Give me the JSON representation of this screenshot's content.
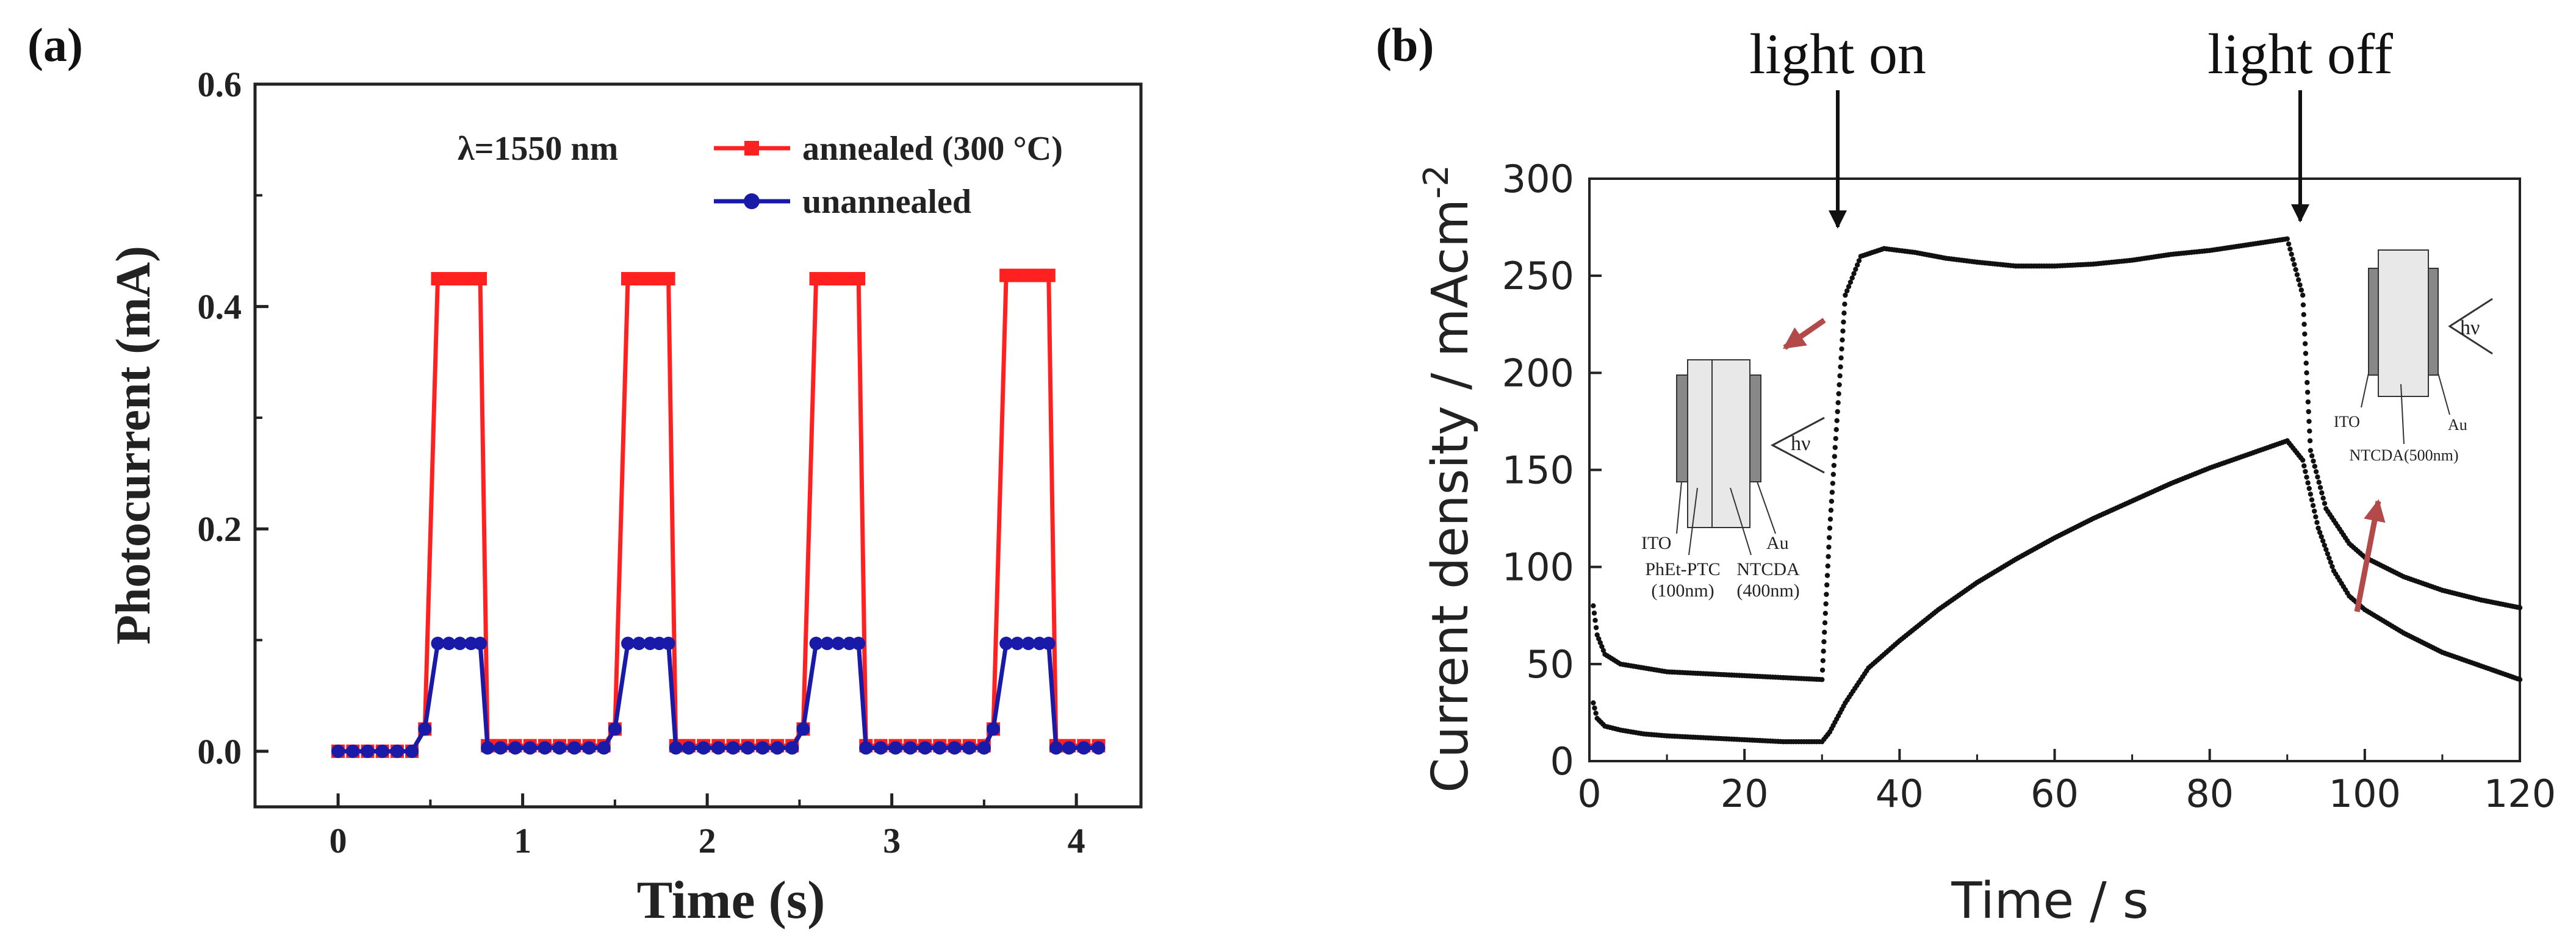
{
  "chart_data": [
    {
      "panel_label": "(a)",
      "type": "line",
      "xlabel": "Time (s)",
      "ylabel": "Photocurrent (mA)",
      "xlim": [
        -0.45,
        4.35
      ],
      "ylim": [
        -0.05,
        0.6
      ],
      "xticks": [
        0,
        1,
        2,
        3,
        4
      ],
      "xtick_labels": [
        "0",
        "1",
        "2",
        "3",
        "4"
      ],
      "yticks": [
        0.0,
        0.2,
        0.4,
        0.6
      ],
      "ytick_labels": [
        "0.0",
        "0.2",
        "0.4",
        "0.6"
      ],
      "annotation": "λ=1550 nm",
      "legend_position": "top-right",
      "series": [
        {
          "name": "annealed (300 °C)",
          "color": "#ff2020",
          "marker": "square",
          "x": [
            0,
            0.08,
            0.16,
            0.24,
            0.32,
            0.4,
            0.47,
            0.54,
            0.6,
            0.66,
            0.72,
            0.77,
            0.81,
            0.88,
            0.96,
            1.04,
            1.12,
            1.2,
            1.28,
            1.36,
            1.44,
            1.5,
            1.57,
            1.63,
            1.69,
            1.74,
            1.79,
            1.83,
            1.9,
            1.98,
            2.06,
            2.14,
            2.22,
            2.3,
            2.38,
            2.46,
            2.52,
            2.59,
            2.65,
            2.71,
            2.77,
            2.82,
            2.86,
            2.94,
            3.02,
            3.1,
            3.18,
            3.26,
            3.34,
            3.42,
            3.5,
            3.55,
            3.62,
            3.68,
            3.74,
            3.8,
            3.85,
            3.89,
            3.96,
            4.04,
            4.12
          ],
          "y": [
            0.0,
            0.0,
            0.0,
            0.0,
            0.0,
            0.0,
            0.02,
            0.425,
            0.425,
            0.425,
            0.425,
            0.425,
            0.005,
            0.005,
            0.005,
            0.005,
            0.005,
            0.005,
            0.005,
            0.005,
            0.005,
            0.02,
            0.425,
            0.425,
            0.425,
            0.425,
            0.425,
            0.005,
            0.005,
            0.005,
            0.005,
            0.005,
            0.005,
            0.005,
            0.005,
            0.005,
            0.02,
            0.425,
            0.425,
            0.425,
            0.425,
            0.425,
            0.005,
            0.005,
            0.005,
            0.005,
            0.005,
            0.005,
            0.005,
            0.005,
            0.005,
            0.02,
            0.428,
            0.428,
            0.428,
            0.428,
            0.428,
            0.005,
            0.005,
            0.005,
            0.005
          ]
        },
        {
          "name": "unannealed",
          "color": "#1a1aa8",
          "marker": "circle",
          "x": [
            0,
            0.08,
            0.16,
            0.24,
            0.32,
            0.4,
            0.47,
            0.54,
            0.6,
            0.66,
            0.72,
            0.77,
            0.81,
            0.88,
            0.96,
            1.04,
            1.12,
            1.2,
            1.28,
            1.36,
            1.44,
            1.5,
            1.57,
            1.63,
            1.69,
            1.74,
            1.79,
            1.83,
            1.9,
            1.98,
            2.06,
            2.14,
            2.22,
            2.3,
            2.38,
            2.46,
            2.52,
            2.59,
            2.65,
            2.71,
            2.77,
            2.82,
            2.86,
            2.94,
            3.02,
            3.1,
            3.18,
            3.26,
            3.34,
            3.42,
            3.5,
            3.55,
            3.62,
            3.68,
            3.74,
            3.8,
            3.85,
            3.89,
            3.96,
            4.04,
            4.12
          ],
          "y": [
            0.0,
            0.0,
            0.0,
            0.0,
            0.0,
            0.0,
            0.02,
            0.097,
            0.097,
            0.097,
            0.097,
            0.097,
            0.003,
            0.003,
            0.003,
            0.003,
            0.003,
            0.003,
            0.003,
            0.003,
            0.003,
            0.02,
            0.097,
            0.097,
            0.097,
            0.097,
            0.097,
            0.003,
            0.003,
            0.003,
            0.003,
            0.003,
            0.003,
            0.003,
            0.003,
            0.003,
            0.02,
            0.097,
            0.097,
            0.097,
            0.097,
            0.097,
            0.003,
            0.003,
            0.003,
            0.003,
            0.003,
            0.003,
            0.003,
            0.003,
            0.003,
            0.02,
            0.097,
            0.097,
            0.097,
            0.097,
            0.097,
            0.003,
            0.003,
            0.003,
            0.003
          ]
        }
      ]
    },
    {
      "panel_label": "(b)",
      "type": "scatter",
      "xlabel": "Time / s",
      "ylabel": "Current density / mAcm",
      "ylabel_superscript": "-2",
      "xlim": [
        0,
        120
      ],
      "ylim": [
        0,
        300
      ],
      "xticks": [
        0,
        20,
        40,
        60,
        80,
        100,
        120
      ],
      "xtick_labels": [
        "0",
        "20",
        "40",
        "60",
        "80",
        "100",
        "120"
      ],
      "yticks": [
        0,
        50,
        100,
        150,
        200,
        250,
        300
      ],
      "ytick_labels": [
        "0",
        "50",
        "100",
        "150",
        "200",
        "250",
        "300"
      ],
      "annotations": [
        {
          "text": "light on",
          "x": 31
        },
        {
          "text": "light off",
          "x": 92
        }
      ],
      "series": [
        {
          "color": "#111111",
          "x": [
            0.5,
            1,
            2,
            4,
            7,
            10,
            15,
            20,
            25,
            30,
            31,
            33,
            35,
            38,
            42,
            46,
            50,
            55,
            60,
            65,
            70,
            75,
            80,
            85,
            90,
            92,
            93,
            95,
            98,
            100,
            105,
            110,
            115,
            120
          ],
          "y": [
            80,
            65,
            55,
            50,
            48,
            46,
            45,
            44,
            43,
            42,
            120,
            240,
            260,
            264,
            262,
            259,
            257,
            255,
            255,
            256,
            258,
            261,
            263,
            266,
            269,
            240,
            160,
            130,
            112,
            105,
            95,
            88,
            83,
            79
          ]
        },
        {
          "color": "#111111",
          "x": [
            0.5,
            1,
            2,
            4,
            7,
            10,
            15,
            20,
            25,
            30,
            31,
            33,
            36,
            40,
            45,
            50,
            55,
            60,
            65,
            70,
            75,
            80,
            85,
            90,
            92,
            94,
            96,
            98,
            100,
            105,
            110,
            115,
            120
          ],
          "y": [
            30,
            22,
            18,
            16,
            14,
            13,
            12,
            11,
            10,
            10,
            15,
            30,
            48,
            62,
            78,
            92,
            104,
            115,
            125,
            134,
            143,
            151,
            158,
            165,
            155,
            120,
            98,
            85,
            78,
            66,
            56,
            49,
            42
          ]
        }
      ]
    }
  ],
  "inset_left": {
    "hv": "hν",
    "ito": "ITO",
    "phet_ptc": "PhEt-PTC",
    "phet_thickness": "(100nm)",
    "ntcda": "NTCDA",
    "ntcda_thickness": "(400nm)",
    "au": "Au"
  },
  "inset_right": {
    "hv": "hν",
    "ito": "ITO",
    "au": "Au",
    "ntcda": "NTCDA(500nm)"
  }
}
